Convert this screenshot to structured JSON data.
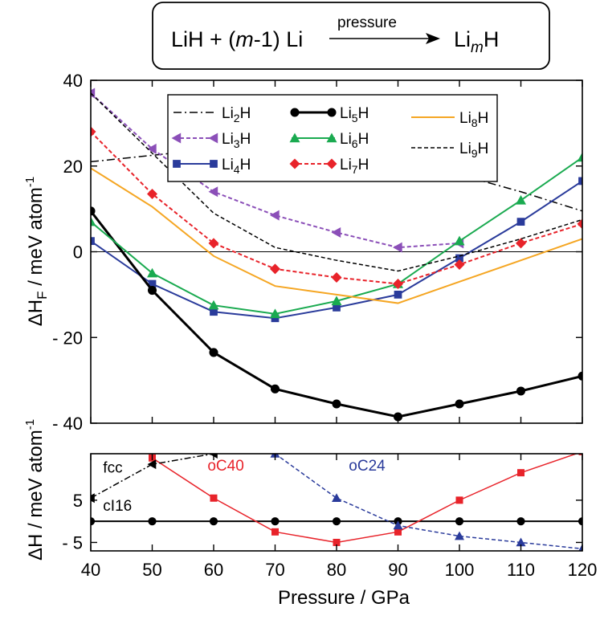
{
  "equation": {
    "lhs_a": "LiH + (",
    "lhs_m": "m",
    "lhs_b": "-1) Li",
    "arrow_label": "pressure",
    "rhs_base": "Li",
    "rhs_sub": "m",
    "rhs_tail": "H"
  },
  "chart_data": [
    {
      "type": "line",
      "title": "",
      "xlabel": "Pressure / GPa",
      "ylabel_base": "ΔH",
      "ylabel_sub": "F",
      "ylabel_rest": " / meV atom",
      "ylabel_sup": "-1",
      "xlim": [
        40,
        120
      ],
      "ylim": [
        -40,
        40
      ],
      "xticks": [
        "40",
        "50",
        "60",
        "70",
        "80",
        "90",
        "100",
        "110",
        "120"
      ],
      "yticks": [
        {
          "value": 40,
          "label": "40"
        },
        {
          "value": 20,
          "label": "20"
        },
        {
          "value": 0,
          "label": "0"
        },
        {
          "value": -20,
          "label": "- 20"
        },
        {
          "value": -40,
          "label": "- 40"
        }
      ],
      "series": [
        {
          "name": "Li2H",
          "base": "Li",
          "sub": "2",
          "tail": "H",
          "color": "#000000",
          "dash": "10,4,2,4",
          "width": 1.5,
          "marker": "none",
          "x": [
            40,
            50,
            60,
            70,
            80,
            90,
            100,
            110,
            120
          ],
          "y": [
            21,
            22.5,
            24,
            24.5,
            23.5,
            21.5,
            18,
            14,
            9.5
          ]
        },
        {
          "name": "Li3H",
          "base": "Li",
          "sub": "3",
          "tail": "H",
          "color": "#8b4fb8",
          "dash": "5,3",
          "width": 2,
          "marker": "tri-left",
          "x": [
            40,
            50,
            60,
            70,
            80,
            90,
            100
          ],
          "y": [
            37,
            24,
            14,
            8.5,
            4.5,
            1,
            2
          ]
        },
        {
          "name": "Li4H",
          "base": "Li",
          "sub": "4",
          "tail": "H",
          "color": "#2a3b9b",
          "dash": "",
          "width": 2,
          "marker": "square",
          "x": [
            40,
            50,
            60,
            70,
            80,
            90,
            100,
            110,
            120
          ],
          "y": [
            2.5,
            -7.5,
            -14,
            -15.5,
            -13,
            -10,
            -1.5,
            7,
            16.5
          ]
        },
        {
          "name": "Li5H",
          "base": "Li",
          "sub": "5",
          "tail": "H",
          "color": "#000000",
          "dash": "",
          "width": 3,
          "marker": "circle",
          "x": [
            40,
            50,
            60,
            70,
            80,
            90,
            100,
            110,
            120
          ],
          "y": [
            9.5,
            -9,
            -23.5,
            -32,
            -35.5,
            -38.5,
            -35.5,
            -32.5,
            -29
          ]
        },
        {
          "name": "Li6H",
          "base": "Li",
          "sub": "6",
          "tail": "H",
          "color": "#1aaa50",
          "dash": "",
          "width": 2,
          "marker": "triangle",
          "x": [
            40,
            50,
            60,
            70,
            80,
            90,
            100,
            110,
            120
          ],
          "y": [
            7,
            -5,
            -12.5,
            -14.5,
            -11.5,
            -7.5,
            2.5,
            12,
            22
          ]
        },
        {
          "name": "Li7H",
          "base": "Li",
          "sub": "7",
          "tail": "H",
          "color": "#e8232a",
          "dash": "5,3",
          "width": 2,
          "marker": "diamond",
          "x": [
            40,
            50,
            60,
            70,
            80,
            90,
            100,
            110,
            120
          ],
          "y": [
            28,
            13.5,
            2,
            -4,
            -6,
            -7.5,
            -3,
            2,
            6.5
          ]
        },
        {
          "name": "Li8H",
          "base": "Li",
          "sub": "8",
          "tail": "H",
          "color": "#f5a623",
          "dash": "",
          "width": 2,
          "marker": "none",
          "x": [
            40,
            50,
            60,
            70,
            80,
            90,
            100,
            110,
            120
          ],
          "y": [
            19.5,
            10.5,
            -1,
            -8,
            -10,
            -12,
            -7,
            -2,
            3
          ]
        },
        {
          "name": "Li9H",
          "base": "Li",
          "sub": "9",
          "tail": "H",
          "color": "#000000",
          "dash": "5,3",
          "width": 1.5,
          "marker": "none",
          "x": [
            40,
            50,
            60,
            70,
            80,
            90,
            100,
            110,
            120
          ],
          "y": [
            37,
            23,
            9,
            1,
            -2,
            -4.5,
            -1,
            3,
            7.5
          ]
        }
      ],
      "legend_position": "top"
    },
    {
      "type": "line",
      "title": "",
      "xlabel": "Pressure / GPa",
      "ylabel": "ΔH / meV atom",
      "ylabel_sup": "-1",
      "xlim": [
        40,
        120
      ],
      "ylim": [
        -7,
        16
      ],
      "yticks": [
        {
          "value": 5,
          "label": "5"
        },
        {
          "value": -5,
          "label": "- 5"
        }
      ],
      "series": [
        {
          "name": "cI16",
          "color": "#000000",
          "dash": "",
          "width": 2,
          "marker": "circle",
          "x": [
            40,
            50,
            60,
            70,
            80,
            90,
            100,
            110,
            120
          ],
          "y": [
            0,
            0,
            0,
            0,
            0,
            0,
            0,
            0,
            0
          ]
        },
        {
          "name": "oC40",
          "color": "#e8232a",
          "dash": "",
          "width": 1.5,
          "marker": "square",
          "x": [
            50,
            60,
            70,
            80,
            90,
            100,
            110,
            120
          ],
          "y": [
            15,
            5.5,
            -2.5,
            -5,
            -2.5,
            5,
            11.5,
            16.5
          ]
        },
        {
          "name": "oC24",
          "color": "#2a3b9b",
          "dash": "5,3",
          "width": 1.5,
          "marker": "triangle",
          "x": [
            70,
            80,
            90,
            100,
            110,
            120
          ],
          "y": [
            16,
            5.5,
            -1,
            -3.5,
            -5,
            -6.5
          ]
        },
        {
          "name": "fcc",
          "color": "#000000",
          "dash": "8,3,2,3",
          "width": 1.5,
          "marker": "tri-left",
          "x": [
            40,
            50,
            60
          ],
          "y": [
            5.5,
            13.5,
            16
          ]
        }
      ],
      "annotations": [
        {
          "text": "fcc",
          "x": 42,
          "y": 11.5,
          "color": "#000000"
        },
        {
          "text": "cI16",
          "x": 42,
          "y": 2.5,
          "color": "#000000"
        },
        {
          "text": "oC40",
          "x": 59,
          "y": 12,
          "color": "#e8232a"
        },
        {
          "text": "oC24",
          "x": 82,
          "y": 12,
          "color": "#2a3b9b"
        }
      ]
    }
  ]
}
